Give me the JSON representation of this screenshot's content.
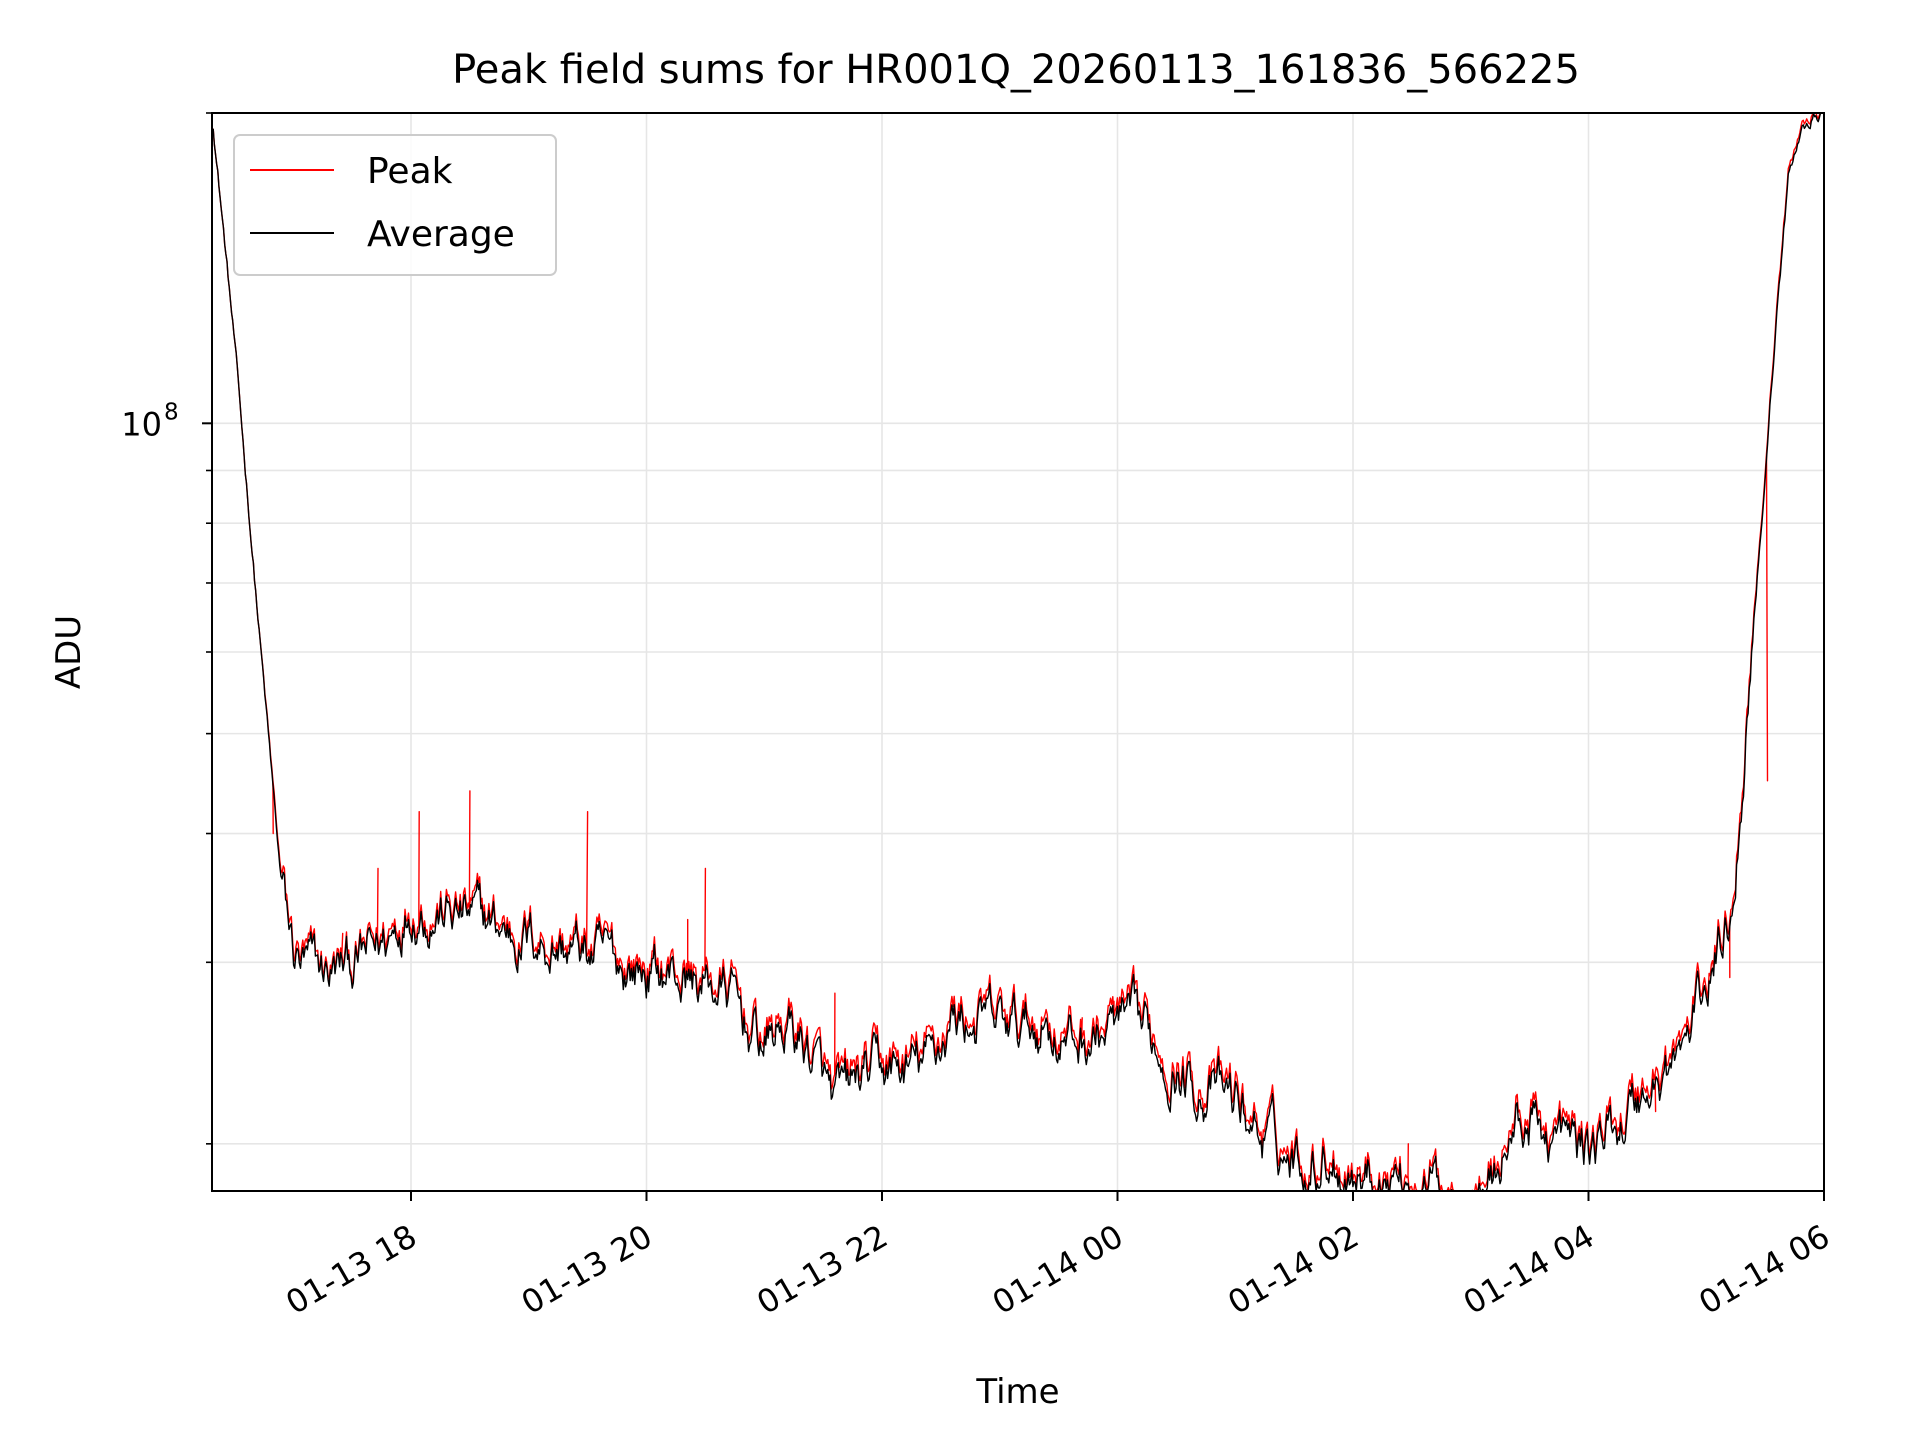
{
  "chart_data": {
    "type": "line",
    "title": "Peak field sums for HR001Q_20260113_161836_566225",
    "xlabel": "Time",
    "ylabel": "ADU",
    "yscale": "log",
    "grid": true,
    "legend_position": "top-left",
    "x_range_hours": [
      16.31,
      30.0
    ],
    "ylim": [
      18000000,
      200000000
    ],
    "x_ticks": [
      {
        "label": "01-13 18",
        "hours": 18
      },
      {
        "label": "01-13 20",
        "hours": 20
      },
      {
        "label": "01-13 22",
        "hours": 22
      },
      {
        "label": "01-14 00",
        "hours": 24
      },
      {
        "label": "01-14 02",
        "hours": 26
      },
      {
        "label": "01-14 04",
        "hours": 28
      },
      {
        "label": "01-14 06",
        "hours": 30
      }
    ],
    "y_major_tick": {
      "base": "10",
      "exponent": "8",
      "value": 100000000
    },
    "y_minor_ticks": [
      20000000,
      30000000,
      40000000,
      50000000,
      60000000,
      70000000,
      80000000,
      90000000,
      200000000
    ],
    "series": [
      {
        "name": "Peak",
        "color": "#ff0000",
        "x_hours": [
          16.32,
          16.5,
          16.7,
          16.9,
          17.0,
          17.1,
          17.2,
          17.4,
          17.6,
          17.8,
          17.9,
          18.0,
          18.1,
          18.3,
          18.5,
          18.7,
          18.9,
          19.1,
          19.3,
          19.5,
          19.7,
          19.9,
          20.1,
          20.3,
          20.5,
          20.7,
          20.9,
          21.0,
          21.2,
          21.4,
          21.6,
          21.8,
          22.0,
          22.2,
          22.4,
          22.6,
          22.8,
          23.0,
          23.2,
          23.4,
          23.6,
          23.8,
          24.0,
          24.2,
          24.4,
          24.6,
          24.8,
          25.0,
          25.2,
          25.4,
          25.6,
          25.8,
          26.0,
          26.2,
          26.4,
          26.6,
          26.8,
          27.0,
          27.2,
          27.4,
          27.6,
          27.8,
          28.0,
          28.2,
          28.4,
          28.6,
          28.8,
          29.0,
          29.2,
          29.3,
          29.4,
          29.5,
          29.6,
          29.7,
          29.8,
          29.9,
          29.98
        ],
        "values": [
          195000000,
          120000000,
          65000000,
          36000000,
          31000000,
          30000000,
          29500000,
          29800000,
          30500000,
          32000000,
          33500000,
          35000000,
          34500000,
          34000000,
          33500000,
          33000000,
          32500000,
          32000000,
          31500000,
          31000000,
          30500000,
          30000000,
          29800000,
          29500000,
          29000000,
          28500000,
          26000000,
          25500000,
          26500000,
          25000000,
          22000000,
          23500000,
          24000000,
          24000000,
          24500000,
          27000000,
          26800000,
          26500000,
          26300000,
          26800000,
          25500000,
          25800000,
          26500000,
          26000000,
          25000000,
          23500000,
          23000000,
          22500000,
          21000000,
          20000000,
          19500000,
          20000000,
          19200000,
          19000000,
          18800000,
          18600000,
          18500000,
          18300000,
          19000000,
          21500000,
          21000000,
          20500000,
          20000000,
          21000000,
          22500000,
          23500000,
          25000000,
          29000000,
          34000000,
          45000000,
          65000000,
          90000000,
          130000000,
          175000000,
          195000000,
          200000000,
          201000000
        ],
        "spikes": [
          {
            "x_hours": 16.83,
            "value": 40000000
          },
          {
            "x_hours": 17.42,
            "value": 32000000
          },
          {
            "x_hours": 17.72,
            "value": 37000000
          },
          {
            "x_hours": 18.07,
            "value": 42000000
          },
          {
            "x_hours": 18.5,
            "value": 44000000
          },
          {
            "x_hours": 19.5,
            "value": 42000000
          },
          {
            "x_hours": 20.35,
            "value": 33000000
          },
          {
            "x_hours": 20.5,
            "value": 37000000
          },
          {
            "x_hours": 21.6,
            "value": 28000000
          },
          {
            "x_hours": 23.7,
            "value": 26500000
          },
          {
            "x_hours": 23.97,
            "value": 27500000
          },
          {
            "x_hours": 26.47,
            "value": 20000000
          },
          {
            "x_hours": 28.57,
            "value": 21500000
          },
          {
            "x_hours": 29.2,
            "value": 29000000
          },
          {
            "x_hours": 29.52,
            "value": 45000000
          }
        ]
      },
      {
        "name": "Average",
        "color": "#000000",
        "x_hours": [
          16.32,
          16.5,
          16.7,
          16.9,
          17.0,
          17.1,
          17.2,
          17.4,
          17.6,
          17.8,
          17.9,
          18.0,
          18.1,
          18.3,
          18.5,
          18.7,
          18.9,
          19.1,
          19.3,
          19.5,
          19.7,
          19.9,
          20.1,
          20.3,
          20.5,
          20.7,
          20.9,
          21.0,
          21.2,
          21.4,
          21.6,
          21.8,
          22.0,
          22.2,
          22.4,
          22.6,
          22.8,
          23.0,
          23.2,
          23.4,
          23.6,
          23.8,
          24.0,
          24.2,
          24.4,
          24.6,
          24.8,
          25.0,
          25.2,
          25.4,
          25.6,
          25.8,
          26.0,
          26.2,
          26.4,
          26.6,
          26.8,
          27.0,
          27.2,
          27.4,
          27.6,
          27.8,
          28.0,
          28.2,
          28.4,
          28.6,
          28.8,
          29.0,
          29.2,
          29.3,
          29.4,
          29.5,
          29.6,
          29.7,
          29.8,
          29.9,
          29.98
        ],
        "values": [
          195000000,
          120000000,
          65000000,
          35500000,
          30500000,
          29500000,
          29200000,
          29500000,
          30200000,
          31500000,
          33000000,
          34500000,
          34000000,
          33500000,
          33000000,
          32500000,
          32000000,
          31500000,
          31000000,
          30500000,
          30000000,
          29500000,
          29300000,
          29000000,
          28500000,
          28000000,
          25500000,
          25000000,
          26000000,
          24500000,
          21500000,
          23000000,
          23500000,
          23500000,
          24000000,
          26500000,
          26300000,
          26000000,
          25800000,
          26300000,
          25000000,
          25300000,
          26000000,
          25500000,
          24500000,
          23000000,
          22500000,
          22000000,
          20600000,
          19600000,
          19200000,
          19600000,
          18900000,
          18700000,
          18500000,
          18300000,
          18200000,
          18000000,
          18700000,
          21100000,
          20600000,
          20100000,
          19700000,
          20600000,
          22000000,
          23000000,
          24500000,
          28500000,
          33500000,
          44000000,
          64000000,
          89000000,
          128000000,
          173000000,
          193000000,
          198000000,
          200000000
        ]
      }
    ]
  }
}
